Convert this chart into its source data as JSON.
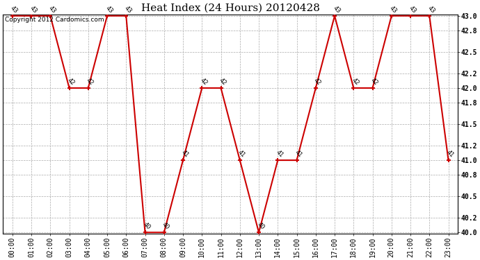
{
  "title": "Heat Index (24 Hours) 20120428",
  "hours": [
    "00:00",
    "01:00",
    "02:00",
    "03:00",
    "04:00",
    "05:00",
    "06:00",
    "07:00",
    "08:00",
    "09:00",
    "10:00",
    "11:00",
    "12:00",
    "13:00",
    "14:00",
    "15:00",
    "16:00",
    "17:00",
    "18:00",
    "19:00",
    "20:00",
    "21:00",
    "22:00",
    "23:00"
  ],
  "values": [
    43,
    43,
    43,
    42,
    42,
    43,
    43,
    40,
    40,
    41,
    42,
    42,
    41,
    40,
    41,
    41,
    42,
    43,
    42,
    42,
    43,
    43,
    43,
    41
  ],
  "ylim_min": 40.0,
  "ylim_max": 43.0,
  "yticks": [
    40.0,
    40.2,
    40.5,
    40.8,
    41.0,
    41.2,
    41.5,
    41.8,
    42.0,
    42.2,
    42.5,
    42.8,
    43.0
  ],
  "line_color": "#cc0000",
  "marker_color": "#cc0000",
  "bg_color": "#ffffff",
  "grid_color": "#aaaaaa",
  "copyright_text": "Copyright 2012 Cardomics.com",
  "title_fontsize": 11,
  "label_fontsize": 6,
  "tick_fontsize": 7,
  "copyright_fontsize": 6.5
}
